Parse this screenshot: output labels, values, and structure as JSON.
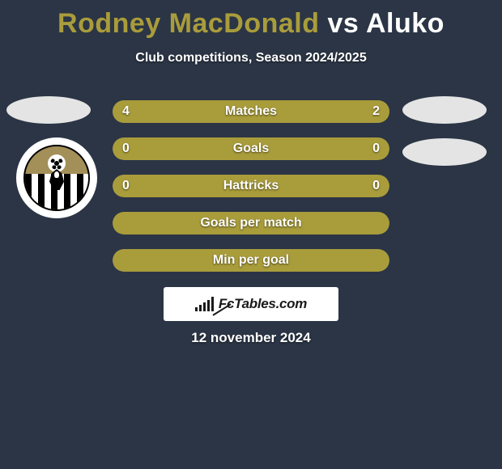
{
  "title": {
    "player1": "Rodney MacDonald",
    "vs": "vs",
    "player2": "Aluko",
    "player1_color": "#a99c3b",
    "vs_color": "#ffffff",
    "player2_color": "#ffffff"
  },
  "subtitle": "Club competitions, Season 2024/2025",
  "background_color": "#2b3545",
  "row_bg_color": "#434b57",
  "accent_color": "#a99c3b",
  "text_color": "#ffffff",
  "rows": [
    {
      "label": "Matches",
      "left": "4",
      "right": "2",
      "left_pct": 66.7,
      "right_pct": 33.3,
      "fill_color": "#a99c3b"
    },
    {
      "label": "Goals",
      "left": "0",
      "right": "0",
      "left_pct": 100,
      "right_pct": 0,
      "fill_color": "#a99c3b"
    },
    {
      "label": "Hattricks",
      "left": "0",
      "right": "0",
      "left_pct": 100,
      "right_pct": 0,
      "fill_color": "#a99c3b"
    },
    {
      "label": "Goals per match",
      "left": "",
      "right": "",
      "left_pct": 100,
      "right_pct": 0,
      "fill_color": "#a99c3b"
    },
    {
      "label": "Min per goal",
      "left": "",
      "right": "",
      "left_pct": 100,
      "right_pct": 0,
      "fill_color": "#a99c3b"
    }
  ],
  "brand": "FcTables.com",
  "date": "12 november 2024",
  "club_badge": {
    "outer_bg": "#ffffff",
    "inner_bg": "#a38f58"
  }
}
